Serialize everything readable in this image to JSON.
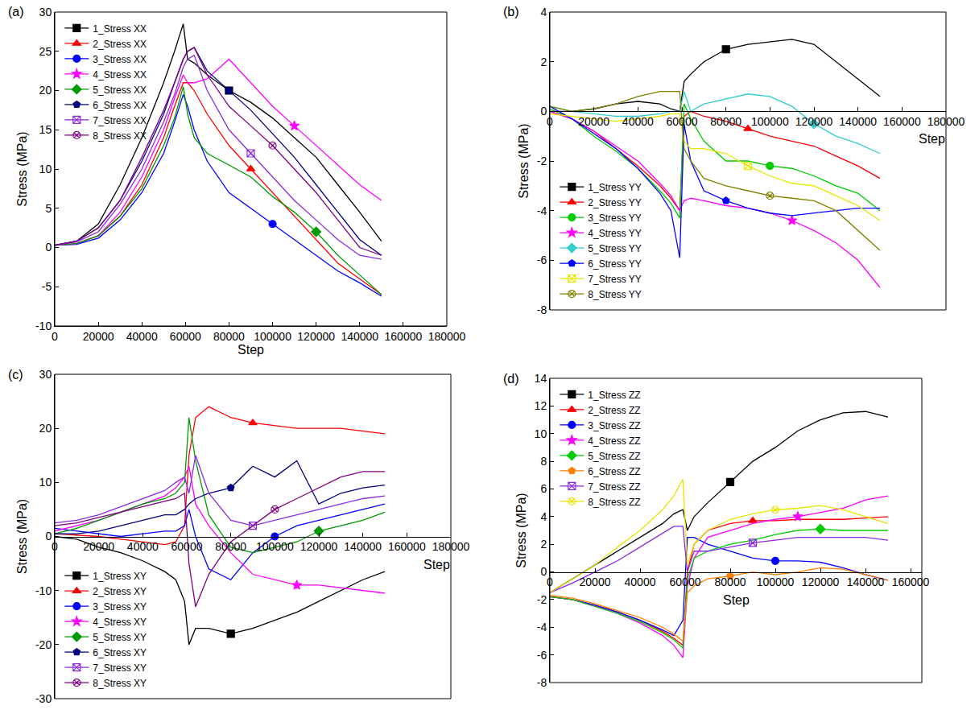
{
  "chart_data": [
    {
      "type": "line",
      "title": "(a)",
      "x_label": "Step",
      "y_label": "Stress (MPa)",
      "xlim": [
        0,
        180000
      ],
      "xticks": [
        0,
        20000,
        40000,
        60000,
        80000,
        100000,
        120000,
        140000,
        160000,
        180000
      ],
      "ylim": [
        -10,
        30
      ],
      "yticks": [
        -10,
        -5,
        0,
        5,
        10,
        15,
        20,
        25,
        30
      ],
      "grid": false,
      "legend": "upper left",
      "x": [
        0,
        10000,
        20000,
        30000,
        40000,
        50000,
        55000,
        59000,
        61000,
        64000,
        70000,
        80000,
        90000,
        100000,
        110000,
        120000,
        130000,
        140000,
        150000
      ],
      "series": [
        {
          "name": "1_Stress XX",
          "color": "#000000",
          "marker": "square",
          "values": [
            0.3,
            0.8,
            3,
            8,
            14,
            21,
            25,
            28.5,
            24,
            23.5,
            22,
            20,
            18.5,
            16.5,
            14,
            11.5,
            8,
            4.5,
            0.8
          ]
        },
        {
          "name": "2_Stress XX",
          "color": "#ff0000",
          "marker": "triangle",
          "values": [
            0.3,
            0.5,
            1.5,
            4,
            8,
            14,
            18,
            21,
            21,
            20,
            17,
            13,
            10,
            7,
            4,
            1,
            -2,
            -4,
            -6
          ]
        },
        {
          "name": "3_Stress XX",
          "color": "#0000ff",
          "marker": "circle",
          "values": [
            0.3,
            0.4,
            1.2,
            3.5,
            7,
            12,
            16,
            19.5,
            18,
            15,
            11,
            7,
            5,
            3,
            1,
            -1,
            -3,
            -4.5,
            -6.2
          ]
        },
        {
          "name": "4_Stress XX",
          "color": "#ff00ff",
          "marker": "star",
          "values": [
            0.3,
            0.5,
            1.5,
            4.5,
            9,
            15,
            19,
            22,
            21,
            21,
            21.5,
            24,
            21,
            18,
            15.5,
            13,
            10.5,
            8,
            6
          ]
        },
        {
          "name": "5_Stress XX",
          "color": "#009900",
          "marker": "diamond",
          "values": [
            0.3,
            0.5,
            1.5,
            4,
            7.5,
            13,
            16.5,
            20.5,
            17,
            14,
            12,
            10.5,
            9,
            6.5,
            4.5,
            2,
            -1,
            -3.5,
            -6
          ]
        },
        {
          "name": "6_Stress XX",
          "color": "#000080",
          "marker": "pentagon",
          "values": [
            0.3,
            0.8,
            2.5,
            6,
            11,
            17,
            21,
            24,
            25,
            25.5,
            22.5,
            20,
            17.5,
            14.5,
            11.5,
            8,
            4.5,
            1,
            -1
          ]
        },
        {
          "name": "7_Stress XX",
          "color": "#8a2be2",
          "marker": "crossed square",
          "values": [
            0.3,
            0.7,
            2,
            5.5,
            10,
            16,
            19.5,
            23,
            24,
            24.5,
            20,
            15,
            12,
            9,
            6,
            3.5,
            1,
            -1,
            -1.5
          ]
        },
        {
          "name": "8_Stress XX",
          "color": "#800080",
          "marker": "crossed circle",
          "values": [
            0.3,
            0.8,
            2.5,
            6,
            11.5,
            17.5,
            21,
            24,
            25,
            25.5,
            22,
            18,
            15.5,
            13,
            10,
            7,
            3.5,
            0,
            -1
          ]
        }
      ]
    },
    {
      "type": "line",
      "title": "(b)",
      "x_label": "Step",
      "y_label": "Stress (MPa)",
      "xlim": [
        0,
        180000
      ],
      "xticks": [
        0,
        20000,
        40000,
        60000,
        80000,
        100000,
        120000,
        140000,
        160000,
        180000
      ],
      "ylim": [
        -8,
        4
      ],
      "yticks": [
        -8,
        -6,
        -4,
        -2,
        0,
        2,
        4
      ],
      "grid": false,
      "legend": "lower left",
      "x": [
        0,
        10000,
        20000,
        30000,
        40000,
        50000,
        55000,
        59000,
        61000,
        64000,
        70000,
        80000,
        90000,
        100000,
        110000,
        120000,
        130000,
        140000,
        150000
      ],
      "series": [
        {
          "name": "1_Stress YY",
          "color": "#000000",
          "marker": "square",
          "values": [
            0,
            0,
            0.1,
            0.3,
            0.4,
            0.3,
            0.1,
            0,
            1.2,
            1.5,
            2,
            2.5,
            2.7,
            2.8,
            2.9,
            2.7,
            2,
            1.3,
            0.6
          ]
        },
        {
          "name": "2_Stress YY",
          "color": "#ff0000",
          "marker": "triangle",
          "values": [
            0,
            -0.3,
            -0.8,
            -1.5,
            -2.2,
            -3,
            -3.5,
            -4,
            -0.2,
            0,
            -0.2,
            -0.4,
            -0.7,
            -1,
            -1.2,
            -1.4,
            -1.8,
            -2.2,
            -2.7
          ]
        },
        {
          "name": "3_Stress YY",
          "color": "#00cc00",
          "marker": "circle",
          "values": [
            0.1,
            -0.3,
            -1,
            -1.6,
            -2.3,
            -3.2,
            -3.7,
            -4.3,
            0.3,
            -0.3,
            -1.2,
            -2,
            -2,
            -2.2,
            -2.3,
            -2.6,
            -3,
            -3.3,
            -4
          ]
        },
        {
          "name": "4_Stress YY",
          "color": "#ff00ff",
          "marker": "star",
          "values": [
            0,
            -0.3,
            -0.8,
            -1.4,
            -2,
            -2.9,
            -3.4,
            -4,
            -3.6,
            -3.5,
            -3.6,
            -3.8,
            -3.9,
            -4.1,
            -4.4,
            -4.8,
            -5.3,
            -6,
            -7.1
          ]
        },
        {
          "name": "5_Stress YY",
          "color": "#33cccc",
          "marker": "diamond",
          "values": [
            0.2,
            0,
            -0.1,
            -0.2,
            -0.2,
            -0.1,
            0,
            0,
            0.8,
            0,
            0.3,
            0.5,
            0.7,
            0.6,
            0.2,
            -0.5,
            -1,
            -1.3,
            -1.7
          ]
        },
        {
          "name": "6_Stress YY",
          "color": "#0000ff",
          "marker": "pentagon",
          "values": [
            0.2,
            -0.3,
            -0.9,
            -1.5,
            -2.3,
            -3.3,
            -4,
            -5.9,
            -0.5,
            -2,
            -3.2,
            -3.6,
            -3.9,
            -4.1,
            -4.2,
            -4.1,
            -4,
            -3.9,
            -3.9
          ]
        },
        {
          "name": "7_Stress YY",
          "color": "#e6e600",
          "marker": "crossed square",
          "values": [
            -0.1,
            -0.2,
            -0.3,
            -0.4,
            -0.3,
            -0.2,
            -0.1,
            -0.1,
            -1.2,
            -1.5,
            -1.5,
            -1.7,
            -2.2,
            -2.6,
            -2.9,
            -3,
            -3.4,
            -3.8,
            -4.4
          ]
        },
        {
          "name": "8_Stress YY",
          "color": "#808000",
          "marker": "crossed circle",
          "values": [
            0.2,
            0,
            0.1,
            0.3,
            0.6,
            0.8,
            0.8,
            0.8,
            -1.5,
            -2,
            -2.7,
            -3,
            -3.2,
            -3.4,
            -3.5,
            -3.6,
            -4,
            -4.8,
            -5.6
          ]
        }
      ]
    },
    {
      "type": "line",
      "title": "(c)",
      "x_label": "Step",
      "y_label": "Stress (MPa)",
      "xlim": [
        0,
        180000
      ],
      "xticks": [
        0,
        20000,
        40000,
        60000,
        80000,
        100000,
        120000,
        140000,
        160000,
        180000
      ],
      "ylim": [
        -30,
        30
      ],
      "yticks": [
        -30,
        -20,
        -10,
        0,
        10,
        20,
        30
      ],
      "grid": false,
      "legend": "lower left",
      "x": [
        0,
        10000,
        20000,
        30000,
        40000,
        50000,
        55000,
        59000,
        61000,
        64000,
        70000,
        80000,
        90000,
        100000,
        110000,
        120000,
        130000,
        140000,
        150000
      ],
      "series": [
        {
          "name": "1_Stress XY",
          "color": "#000000",
          "marker": "square",
          "values": [
            0,
            -0.5,
            -2,
            -3,
            -4.5,
            -6.5,
            -8,
            -12,
            -20,
            -17,
            -17,
            -18,
            -17,
            -15.5,
            -14,
            -12,
            -10,
            -8,
            -6.5
          ]
        },
        {
          "name": "2_Stress XY",
          "color": "#ff0000",
          "marker": "triangle",
          "values": [
            0.5,
            0.2,
            0,
            -0.5,
            -1,
            -1.5,
            -1,
            2,
            15,
            22,
            24,
            22,
            21,
            20.5,
            20,
            20,
            20,
            19.5,
            19
          ]
        },
        {
          "name": "3_Stress XY",
          "color": "#0000ff",
          "marker": "circle",
          "values": [
            1.5,
            1,
            0.5,
            0,
            0.5,
            1,
            1,
            2,
            5,
            0,
            -6,
            -8,
            -3,
            0,
            2,
            3,
            4,
            5,
            6
          ]
        },
        {
          "name": "4_Stress XY",
          "color": "#ff00ff",
          "marker": "star",
          "values": [
            1,
            2,
            3,
            4.5,
            6,
            7.5,
            9,
            11,
            13,
            6,
            2,
            -3,
            -7,
            -8,
            -9,
            -9,
            -9.5,
            -10,
            -10.5
          ]
        },
        {
          "name": "5_Stress XY",
          "color": "#009900",
          "marker": "diamond",
          "values": [
            0.5,
            1.5,
            3,
            4.5,
            6,
            7,
            8,
            10,
            22,
            14,
            4,
            -2,
            -3,
            -2,
            -1,
            1,
            2,
            3,
            4.5
          ]
        },
        {
          "name": "6_Stress XY",
          "color": "#000080",
          "marker": "pentagon",
          "values": [
            0.5,
            0.5,
            1,
            2,
            3,
            4,
            4,
            5,
            6,
            7,
            8,
            9,
            13,
            11,
            14,
            6,
            8,
            9,
            9.5
          ]
        },
        {
          "name": "7_Stress XY",
          "color": "#8a2be2",
          "marker": "crossed square",
          "values": [
            2.5,
            3,
            4,
            5.5,
            7,
            8.5,
            10,
            11,
            8,
            15,
            8,
            3,
            2,
            3,
            4,
            5,
            6,
            7,
            7.5
          ]
        },
        {
          "name": "8_Stress XY",
          "color": "#800080",
          "marker": "crossed circle",
          "values": [
            2,
            2.5,
            3.5,
            4.5,
            5.5,
            6.5,
            7,
            8,
            -5,
            -13,
            -7,
            -1,
            2,
            5,
            7,
            9,
            11,
            12,
            12
          ]
        }
      ]
    },
    {
      "type": "line",
      "title": "(d)",
      "x_label": "Step",
      "y_label": "Stress (MPa)",
      "xlim": [
        0,
        165000
      ],
      "xticks": [
        0,
        20000,
        40000,
        60000,
        80000,
        100000,
        120000,
        140000,
        160000
      ],
      "ylim": [
        -8,
        14
      ],
      "yticks": [
        -8,
        -6,
        -4,
        -2,
        0,
        2,
        4,
        6,
        8,
        10,
        12,
        14
      ],
      "grid": false,
      "legend": "upper left",
      "x": [
        0,
        10000,
        20000,
        30000,
        40000,
        50000,
        55000,
        59000,
        61000,
        64000,
        70000,
        80000,
        90000,
        100000,
        110000,
        120000,
        130000,
        140000,
        150000
      ],
      "series": [
        {
          "name": "1_Stress ZZ",
          "color": "#000000",
          "marker": "square",
          "values": [
            -1.5,
            -0.5,
            0.5,
            1.5,
            2.5,
            3.5,
            4.2,
            4.5,
            3,
            4,
            5,
            6.5,
            8,
            9,
            10.2,
            11,
            11.5,
            11.6,
            11.2
          ]
        },
        {
          "name": "2_Stress ZZ",
          "color": "#ff0000",
          "marker": "triangle",
          "values": [
            -1.8,
            -2,
            -2.4,
            -2.9,
            -3.5,
            -4.3,
            -4.8,
            -5.3,
            0,
            2,
            3,
            3.5,
            3.7,
            3.7,
            3.8,
            3.8,
            3.8,
            3.9,
            4
          ]
        },
        {
          "name": "3_Stress ZZ",
          "color": "#0000ff",
          "marker": "circle",
          "values": [
            -1.8,
            -2,
            -2.4,
            -2.9,
            -3.5,
            -4.2,
            -4.6,
            -3.5,
            2.5,
            2.5,
            2,
            1.5,
            1,
            0.8,
            0.8,
            0.7,
            0.3,
            -0.2,
            -0.6
          ]
        },
        {
          "name": "4_Stress ZZ",
          "color": "#ff00ff",
          "marker": "star",
          "values": [
            -1.8,
            -2,
            -2.5,
            -3,
            -3.7,
            -4.6,
            -5.3,
            -6.2,
            -1,
            1,
            2.5,
            3,
            3.5,
            3.8,
            4,
            4.3,
            4.6,
            5.2,
            5.5
          ]
        },
        {
          "name": "5_Stress ZZ",
          "color": "#00cc00",
          "marker": "diamond",
          "values": [
            -1.8,
            -2,
            -2.5,
            -3,
            -3.6,
            -4.4,
            -4.9,
            -5.5,
            -0.5,
            1,
            1.5,
            2,
            2.3,
            2.7,
            3,
            3.1,
            3,
            3,
            3
          ]
        },
        {
          "name": "6_Stress ZZ",
          "color": "#ff8000",
          "marker": "pentagon",
          "values": [
            -1.7,
            -1.9,
            -2.3,
            -2.8,
            -3.3,
            -4,
            -4.5,
            -5,
            -1.5,
            -1,
            -0.5,
            -0.3,
            0,
            -0.2,
            0,
            0.3,
            0.2,
            -0.2,
            -0.6
          ]
        },
        {
          "name": "7_Stress ZZ",
          "color": "#8a2be2",
          "marker": "crossed square",
          "values": [
            -1.5,
            -0.8,
            0,
            0.8,
            1.8,
            2.8,
            3.3,
            3.3,
            0,
            1.5,
            1.5,
            1.8,
            2.1,
            2.3,
            2.5,
            2.5,
            2.5,
            2.5,
            2.3
          ]
        },
        {
          "name": "8_Stress ZZ",
          "color": "#e6e600",
          "marker": "crossed circle",
          "values": [
            -1.5,
            -0.5,
            0.5,
            1.8,
            3,
            4.5,
            5.5,
            6.7,
            0.5,
            2,
            3,
            3.8,
            4.2,
            4.5,
            4.6,
            4.8,
            4.5,
            4,
            3.5
          ]
        }
      ]
    }
  ]
}
